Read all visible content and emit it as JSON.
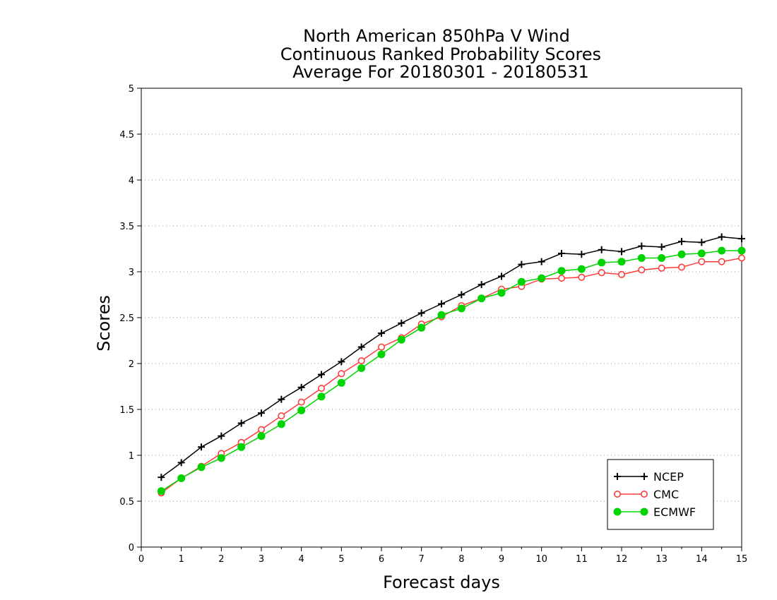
{
  "chart_data": {
    "type": "line",
    "title_lines": [
      "North American 850hPa V Wind",
      "Continuous Ranked Probability Scores",
      "Average For 20180301 - 20180531"
    ],
    "xlabel": "Forecast days",
    "ylabel": "Scores",
    "xlim": [
      0,
      15
    ],
    "ylim": [
      0,
      5
    ],
    "x_ticks": [
      "0",
      "1",
      "2",
      "3",
      "4",
      "5",
      "6",
      "7",
      "8",
      "9",
      "10",
      "11",
      "12",
      "13",
      "14",
      "15"
    ],
    "y_ticks": [
      "0",
      "0.5",
      "1",
      "1.5",
      "2",
      "2.5",
      "3",
      "3.5",
      "4",
      "4.5",
      "5"
    ],
    "grid": "horizontal-dotted",
    "legend_position": "bottom-right",
    "x": [
      0.5,
      1,
      1.5,
      2,
      2.5,
      3,
      3.5,
      4,
      4.5,
      5,
      5.5,
      6,
      6.5,
      7,
      7.5,
      8,
      8.5,
      9,
      9.5,
      10,
      10.5,
      11,
      11.5,
      12,
      12.5,
      13,
      13.5,
      14,
      14.5,
      15
    ],
    "series": [
      {
        "name": "NCEP",
        "color": "#000000",
        "marker": "plus",
        "values": [
          0.76,
          0.92,
          1.09,
          1.21,
          1.35,
          1.46,
          1.61,
          1.74,
          1.88,
          2.02,
          2.18,
          2.33,
          2.44,
          2.55,
          2.65,
          2.75,
          2.86,
          2.95,
          3.08,
          3.11,
          3.2,
          3.19,
          3.24,
          3.22,
          3.28,
          3.27,
          3.33,
          3.32,
          3.38,
          3.36
        ]
      },
      {
        "name": "CMC",
        "color": "#ff3b3b",
        "marker": "open-circle",
        "values": [
          0.59,
          0.75,
          0.88,
          1.02,
          1.14,
          1.28,
          1.43,
          1.58,
          1.73,
          1.89,
          2.03,
          2.18,
          2.28,
          2.43,
          2.51,
          2.63,
          2.71,
          2.81,
          2.84,
          2.92,
          2.93,
          2.94,
          2.99,
          2.97,
          3.02,
          3.04,
          3.05,
          3.11,
          3.11,
          3.15
        ]
      },
      {
        "name": "ECMWF",
        "color": "#00d400",
        "marker": "filled-circle",
        "values": [
          0.61,
          0.75,
          0.87,
          0.97,
          1.09,
          1.21,
          1.34,
          1.49,
          1.64,
          1.79,
          1.95,
          2.1,
          2.26,
          2.39,
          2.53,
          2.6,
          2.71,
          2.77,
          2.89,
          2.93,
          3.01,
          3.03,
          3.1,
          3.11,
          3.15,
          3.15,
          3.19,
          3.2,
          3.23,
          3.23
        ]
      }
    ]
  }
}
